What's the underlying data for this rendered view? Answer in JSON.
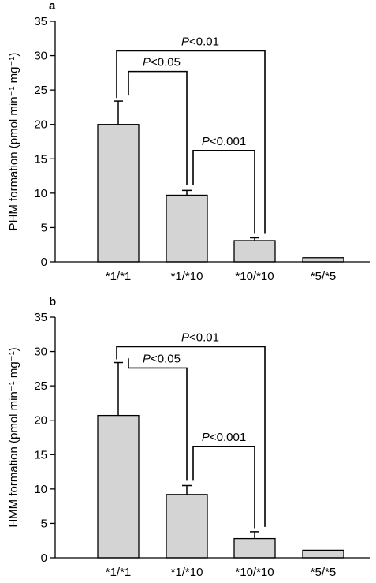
{
  "chart_data": [
    {
      "type": "bar",
      "panel_label": "a",
      "categories": [
        "*1/*1",
        "*1/*10",
        "*10/*10",
        "*5/*5"
      ],
      "values": [
        20.0,
        9.7,
        3.1,
        0.6
      ],
      "error_upper": [
        23.4,
        10.4,
        3.5,
        null
      ],
      "ylabel": "PHM formation (pmol min⁻¹ mg⁻¹)",
      "ylim": [
        0,
        35
      ],
      "yticks": [
        0,
        5,
        10,
        15,
        20,
        25,
        30,
        35
      ],
      "grid": false,
      "bar_color": "#d4d4d4",
      "significance": [
        {
          "from": 0,
          "to": 2,
          "text": "P<0.01",
          "level": 30.7
        },
        {
          "from": 1,
          "to": 1,
          "text": "P<0.05",
          "level": 27.7,
          "drop_start": 24.2,
          "drop_end": 11.2
        },
        {
          "from": 1,
          "to": 2,
          "text": "P<0.001",
          "level": 16.2,
          "drop_start": 11.2,
          "drop_end": 4.2
        }
      ]
    },
    {
      "type": "bar",
      "panel_label": "b",
      "categories": [
        "*1/*1",
        "*1/*10",
        "*10/*10",
        "*5/*5"
      ],
      "values": [
        20.7,
        9.2,
        2.8,
        1.1
      ],
      "error_upper": [
        28.4,
        10.5,
        3.8,
        null
      ],
      "ylabel": "HMM formation (pmol min⁻¹ mg⁻¹)",
      "ylim": [
        0,
        35
      ],
      "yticks": [
        0,
        5,
        10,
        15,
        20,
        25,
        30,
        35
      ],
      "grid": false,
      "bar_color": "#d4d4d4",
      "significance": [
        {
          "from": 0,
          "to": 2,
          "text": "P<0.01",
          "level": 30.7
        },
        {
          "from": 1,
          "to": 1,
          "text": "P<0.05",
          "level": 27.6,
          "drop_start": 29.0,
          "drop_end": 11.2
        },
        {
          "from": 1,
          "to": 2,
          "text": "P<0.001",
          "level": 16.2,
          "drop_start": 11.2,
          "drop_end": 4.3
        }
      ]
    }
  ]
}
